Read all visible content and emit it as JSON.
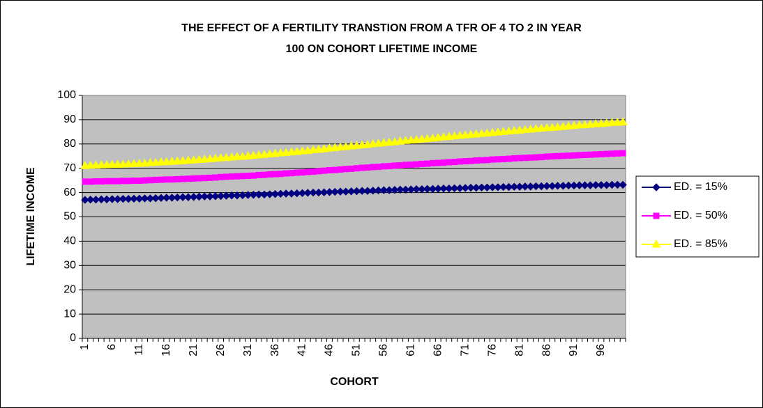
{
  "chart_data": {
    "type": "line",
    "title": [
      "THE EFFECT OF A FERTILITY TRANSTION FROM A TFR OF 4 TO 2 IN YEAR",
      "100 ON COHORT LIFETIME INCOME"
    ],
    "xlabel": "COHORT",
    "ylabel": "LIFETIME INCOME",
    "categories": [
      1,
      null,
      null,
      null,
      null,
      6,
      null,
      null,
      null,
      null,
      11,
      null,
      null,
      null,
      null,
      16,
      null,
      null,
      null,
      null,
      21,
      null,
      null,
      null,
      null,
      26,
      null,
      null,
      null,
      null,
      31,
      null,
      null,
      null,
      null,
      36,
      null,
      null,
      null,
      null,
      41,
      null,
      null,
      null,
      null,
      46,
      null,
      null,
      null,
      null,
      51,
      null,
      null,
      null,
      null,
      56,
      null,
      null,
      null,
      null,
      61,
      null,
      null,
      null,
      null,
      66,
      null,
      null,
      null,
      null,
      71,
      null,
      null,
      null,
      null,
      76,
      null,
      null,
      null,
      null,
      81,
      null,
      null,
      null,
      null,
      86,
      null,
      null,
      null,
      null,
      91,
      null,
      null,
      null,
      null,
      96,
      null,
      null,
      null,
      null
    ],
    "ylim": [
      0,
      100
    ],
    "yticks": [
      0,
      10,
      20,
      30,
      40,
      50,
      60,
      70,
      80,
      90,
      100
    ],
    "grid": true,
    "legend": "right",
    "series": [
      {
        "name": "ED. = 15%",
        "color": "#000080",
        "marker": "diamond",
        "values": [
          57.0,
          57.1,
          57.1,
          57.2,
          57.2,
          57.3,
          57.3,
          57.4,
          57.4,
          57.5,
          57.5,
          57.6,
          57.6,
          57.7,
          57.8,
          57.9,
          57.9,
          58.0,
          58.1,
          58.1,
          58.2,
          58.3,
          58.4,
          58.4,
          58.5,
          58.6,
          58.7,
          58.8,
          58.8,
          58.9,
          59.0,
          59.1,
          59.2,
          59.2,
          59.3,
          59.4,
          59.5,
          59.6,
          59.6,
          59.7,
          59.8,
          59.9,
          60.0,
          60.0,
          60.1,
          60.2,
          60.3,
          60.4,
          60.4,
          60.5,
          60.6,
          60.7,
          60.7,
          60.8,
          60.9,
          61.0,
          61.0,
          61.1,
          61.2,
          61.2,
          61.3,
          61.4,
          61.4,
          61.5,
          61.5,
          61.6,
          61.7,
          61.7,
          61.8,
          61.8,
          61.9,
          62.0,
          62.0,
          62.1,
          62.1,
          62.2,
          62.2,
          62.3,
          62.3,
          62.4,
          62.4,
          62.5,
          62.5,
          62.6,
          62.6,
          62.7,
          62.7,
          62.8,
          62.8,
          62.9,
          62.9,
          63.0,
          63.0,
          63.0,
          63.1,
          63.1,
          63.1,
          63.2,
          63.2,
          63.2
        ]
      },
      {
        "name": "ED. = 50%",
        "color": "#ff00ff",
        "marker": "square",
        "values": [
          64.5,
          64.5,
          64.6,
          64.6,
          64.7,
          64.7,
          64.7,
          64.8,
          64.8,
          64.9,
          64.9,
          65.0,
          65.1,
          65.2,
          65.3,
          65.4,
          65.4,
          65.5,
          65.6,
          65.7,
          65.8,
          65.9,
          66.0,
          66.1,
          66.2,
          66.4,
          66.5,
          66.6,
          66.7,
          66.8,
          66.9,
          67.0,
          67.2,
          67.3,
          67.5,
          67.6,
          67.7,
          67.9,
          68.0,
          68.2,
          68.3,
          68.5,
          68.6,
          68.8,
          69.0,
          69.2,
          69.3,
          69.5,
          69.7,
          69.8,
          70.0,
          70.2,
          70.3,
          70.5,
          70.6,
          70.8,
          70.9,
          71.1,
          71.2,
          71.4,
          71.5,
          71.6,
          71.8,
          71.9,
          72.1,
          72.2,
          72.3,
          72.5,
          72.6,
          72.8,
          72.9,
          73.0,
          73.2,
          73.3,
          73.4,
          73.6,
          73.7,
          73.8,
          73.9,
          74.1,
          74.2,
          74.3,
          74.4,
          74.5,
          74.6,
          74.8,
          74.9,
          75.0,
          75.1,
          75.2,
          75.3,
          75.4,
          75.5,
          75.6,
          75.7,
          75.8,
          75.9,
          76.0,
          76.1,
          76.2
        ]
      },
      {
        "name": "ED. = 85%",
        "color": "#ffff00",
        "marker": "triangle",
        "values": [
          71.0,
          71.1,
          71.2,
          71.3,
          71.4,
          71.5,
          71.5,
          71.6,
          71.7,
          71.8,
          71.9,
          72.0,
          72.2,
          72.3,
          72.5,
          72.6,
          72.7,
          72.9,
          73.0,
          73.2,
          73.3,
          73.5,
          73.6,
          73.8,
          74.0,
          74.2,
          74.3,
          74.5,
          74.7,
          74.8,
          75.0,
          75.2,
          75.4,
          75.6,
          75.8,
          76.0,
          76.2,
          76.4,
          76.6,
          76.8,
          77.0,
          77.2,
          77.5,
          77.7,
          77.9,
          78.2,
          78.4,
          78.6,
          78.8,
          79.1,
          79.3,
          79.5,
          79.7,
          80.0,
          80.2,
          80.4,
          80.6,
          80.8,
          81.1,
          81.3,
          81.5,
          81.7,
          81.9,
          82.1,
          82.3,
          82.6,
          82.8,
          83.0,
          83.2,
          83.4,
          83.6,
          83.8,
          84.0,
          84.2,
          84.4,
          84.6,
          84.8,
          85.0,
          85.2,
          85.4,
          85.6,
          85.8,
          86.0,
          86.2,
          86.4,
          86.6,
          86.7,
          86.9,
          87.1,
          87.3,
          87.5,
          87.7,
          87.8,
          88.0,
          88.2,
          88.3,
          88.5,
          88.7,
          88.8,
          89.0
        ]
      }
    ]
  }
}
